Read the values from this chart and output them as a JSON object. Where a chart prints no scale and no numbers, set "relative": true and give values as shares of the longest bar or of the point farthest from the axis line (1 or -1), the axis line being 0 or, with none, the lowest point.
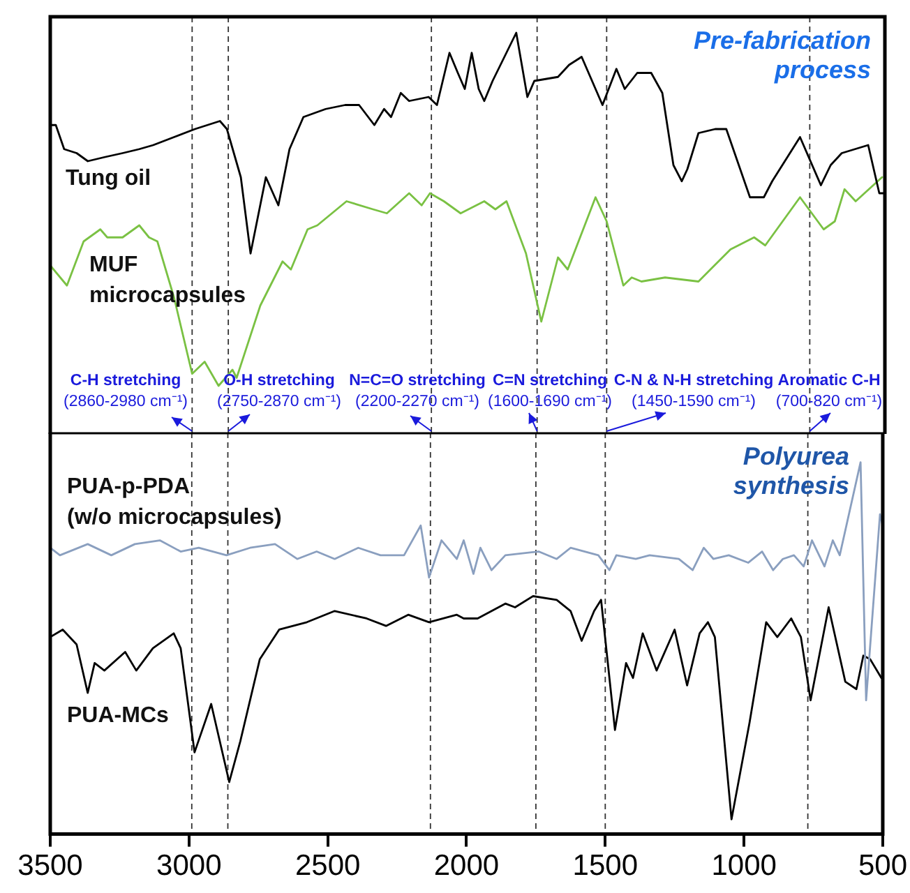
{
  "chart_data": [
    {
      "type": "line",
      "title": "Pre-fabrication process",
      "relative": true,
      "xlim": [
        3500,
        500
      ],
      "tick_labels": false,
      "grid": false,
      "legend": false,
      "marker": "none",
      "line_style": "solid",
      "series": [
        {
          "name": "Tung oil",
          "color": "#000000",
          "x": [
            3500,
            3480,
            3450,
            3405,
            3365,
            3305,
            3240,
            3180,
            3130,
            3055,
            2980,
            2890,
            2865,
            2815,
            2780,
            2725,
            2680,
            2640,
            2590,
            2510,
            2440,
            2390,
            2335,
            2300,
            2275,
            2240,
            2210,
            2140,
            2110,
            2065,
            2035,
            2010,
            1985,
            1960,
            1940,
            1910,
            1825,
            1785,
            1760,
            1675,
            1635,
            1590,
            1515,
            1465,
            1435,
            1390,
            1340,
            1300,
            1260,
            1230,
            1210,
            1170,
            1110,
            1070,
            985,
            935,
            905,
            805,
            730,
            695,
            655,
            560,
            520,
            500
          ],
          "values": [
            0.77,
            0.77,
            0.71,
            0.7,
            0.68,
            0.69,
            0.7,
            0.71,
            0.72,
            0.74,
            0.76,
            0.78,
            0.76,
            0.64,
            0.45,
            0.64,
            0.57,
            0.71,
            0.79,
            0.81,
            0.82,
            0.82,
            0.77,
            0.81,
            0.79,
            0.85,
            0.83,
            0.84,
            0.82,
            0.95,
            0.9,
            0.86,
            0.95,
            0.86,
            0.83,
            0.88,
            1.0,
            0.84,
            0.88,
            0.89,
            0.92,
            0.94,
            0.82,
            0.91,
            0.86,
            0.9,
            0.9,
            0.85,
            0.67,
            0.63,
            0.66,
            0.75,
            0.76,
            0.76,
            0.59,
            0.59,
            0.63,
            0.74,
            0.62,
            0.67,
            0.7,
            0.72,
            0.6,
            0.6
          ]
        },
        {
          "name": "MUF microcapsules",
          "color": "#7ac143",
          "x": [
            3500,
            3440,
            3380,
            3320,
            3295,
            3240,
            3180,
            3145,
            3115,
            3055,
            2990,
            2945,
            2895,
            2845,
            2830,
            2745,
            2665,
            2635,
            2575,
            2540,
            2435,
            2340,
            2290,
            2210,
            2165,
            2135,
            2085,
            2025,
            1940,
            1900,
            1860,
            1790,
            1735,
            1675,
            1640,
            1540,
            1500,
            1440,
            1410,
            1375,
            1290,
            1170,
            1055,
            970,
            930,
            805,
            720,
            680,
            645,
            605,
            510
          ],
          "values": [
            0.42,
            0.37,
            0.48,
            0.51,
            0.49,
            0.49,
            0.52,
            0.49,
            0.48,
            0.34,
            0.15,
            0.18,
            0.12,
            0.16,
            0.14,
            0.32,
            0.43,
            0.41,
            0.51,
            0.52,
            0.58,
            0.56,
            0.55,
            0.6,
            0.57,
            0.6,
            0.58,
            0.55,
            0.58,
            0.56,
            0.58,
            0.45,
            0.28,
            0.44,
            0.41,
            0.59,
            0.53,
            0.37,
            0.39,
            0.38,
            0.39,
            0.38,
            0.46,
            0.49,
            0.47,
            0.59,
            0.51,
            0.53,
            0.61,
            0.58,
            0.64
          ]
        }
      ],
      "ref_lines": [
        {
          "axis": "x",
          "value": 2990,
          "label": "C-H stretching (2860-2980 cm⁻¹)",
          "line_style": "dashed"
        },
        {
          "axis": "x",
          "value": 2860,
          "label": "O-H stretching (2750-2870 cm⁻¹)",
          "line_style": "dashed"
        },
        {
          "axis": "x",
          "value": 2130,
          "label": "N=C=O stretching (2200-2270 cm⁻¹)",
          "line_style": "dashed"
        },
        {
          "axis": "x",
          "value": 1750,
          "label": "C=N stretching (1600-1690 cm⁻¹)",
          "line_style": "dashed"
        },
        {
          "axis": "x",
          "value": 1500,
          "label": "C-N & N-H stretching (1450-1590 cm⁻¹)",
          "line_style": "dashed"
        },
        {
          "axis": "x",
          "value": 770,
          "label": "Aromatic C-H (700-820 cm⁻¹)",
          "line_style": "dashed"
        }
      ]
    },
    {
      "type": "line",
      "title": "Polyurea synthesis",
      "relative": true,
      "xlim": [
        3500,
        500
      ],
      "xticks": [
        3500,
        3000,
        2500,
        2000,
        1500,
        1000,
        500
      ],
      "grid": false,
      "legend": false,
      "marker": "none",
      "line_style": "solid",
      "series": [
        {
          "name": "PUA-p-PDA (w/o microcapsules)",
          "color": "#8a9fbf",
          "x": [
            3500,
            3465,
            3365,
            3280,
            3195,
            3105,
            3030,
            2965,
            2865,
            2780,
            2690,
            2610,
            2540,
            2475,
            2390,
            2310,
            2225,
            2165,
            2135,
            2090,
            2035,
            2010,
            1975,
            1950,
            1910,
            1860,
            1740,
            1675,
            1625,
            1525,
            1485,
            1460,
            1390,
            1340,
            1235,
            1185,
            1145,
            1110,
            1055,
            985,
            935,
            895,
            860,
            820,
            785,
            755,
            710,
            680,
            655,
            580,
            560,
            510,
            500
          ],
          "values": [
            0.77,
            0.75,
            0.78,
            0.75,
            0.78,
            0.79,
            0.76,
            0.77,
            0.75,
            0.77,
            0.78,
            0.74,
            0.76,
            0.74,
            0.77,
            0.75,
            0.75,
            0.83,
            0.69,
            0.79,
            0.74,
            0.79,
            0.7,
            0.77,
            0.71,
            0.75,
            0.76,
            0.74,
            0.77,
            0.75,
            0.71,
            0.75,
            0.74,
            0.75,
            0.74,
            0.71,
            0.77,
            0.74,
            0.75,
            0.73,
            0.76,
            0.71,
            0.74,
            0.75,
            0.72,
            0.79,
            0.72,
            0.79,
            0.75,
            1.0,
            0.36,
            0.86,
            0.83
          ]
        },
        {
          "name": "PUA-MCs",
          "color": "#000000",
          "x": [
            3500,
            3455,
            3405,
            3365,
            3340,
            3305,
            3230,
            3190,
            3130,
            3055,
            3030,
            2980,
            2920,
            2855,
            2815,
            2745,
            2675,
            2575,
            2475,
            2360,
            2290,
            2210,
            2135,
            2035,
            2010,
            1960,
            1860,
            1825,
            1760,
            1675,
            1625,
            1585,
            1540,
            1515,
            1465,
            1425,
            1400,
            1365,
            1315,
            1250,
            1205,
            1160,
            1130,
            1105,
            1045,
            980,
            920,
            880,
            830,
            795,
            760,
            695,
            635,
            595,
            570,
            545,
            505
          ],
          "values": [
            0.53,
            0.55,
            0.51,
            0.38,
            0.46,
            0.44,
            0.49,
            0.44,
            0.5,
            0.54,
            0.5,
            0.22,
            0.35,
            0.14,
            0.25,
            0.47,
            0.55,
            0.57,
            0.6,
            0.58,
            0.56,
            0.59,
            0.57,
            0.59,
            0.58,
            0.58,
            0.62,
            0.61,
            0.64,
            0.63,
            0.6,
            0.52,
            0.6,
            0.63,
            0.28,
            0.46,
            0.42,
            0.54,
            0.44,
            0.55,
            0.4,
            0.54,
            0.57,
            0.53,
            0.04,
            0.3,
            0.57,
            0.53,
            0.58,
            0.53,
            0.36,
            0.61,
            0.41,
            0.39,
            0.48,
            0.47,
            0.42
          ]
        }
      ],
      "ref_lines": [
        {
          "axis": "x",
          "value": 2990,
          "line_style": "dashed"
        },
        {
          "axis": "x",
          "value": 2860,
          "line_style": "dashed"
        },
        {
          "axis": "x",
          "value": 2130,
          "line_style": "dashed"
        },
        {
          "axis": "x",
          "value": 1750,
          "line_style": "dashed"
        },
        {
          "axis": "x",
          "value": 1500,
          "line_style": "dashed"
        },
        {
          "axis": "x",
          "value": 770,
          "line_style": "dashed"
        }
      ]
    }
  ]
}
